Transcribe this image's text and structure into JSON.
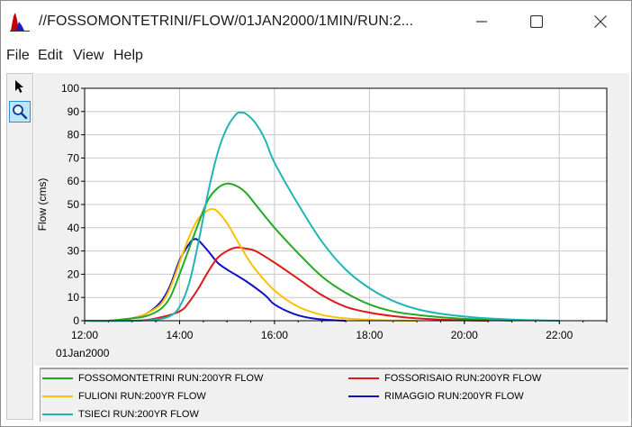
{
  "window": {
    "title": "//FOSSOMONTETRINI/FLOW/01JAN2000/1MIN/RUN:2...",
    "minimize_glyph": "—",
    "close_glyph": "✕"
  },
  "menu": {
    "items": [
      "File",
      "Edit",
      "View",
      "Help"
    ]
  },
  "toolbar": {
    "tools": [
      {
        "name": "pointer-tool",
        "icon": "arrow-pointer-icon",
        "active": false
      },
      {
        "name": "zoom-tool",
        "icon": "magnifier-icon",
        "active": true
      }
    ]
  },
  "chart_data": {
    "type": "line",
    "ylabel": "Flow (cms)",
    "xlabel": "",
    "ylim": [
      0,
      100
    ],
    "yticks": [
      0,
      10,
      20,
      30,
      40,
      50,
      60,
      70,
      80,
      90,
      100
    ],
    "xlim_hours": [
      12,
      23
    ],
    "xticks": [
      {
        "value": 12,
        "label": "12:00"
      },
      {
        "value": 14,
        "label": "14:00"
      },
      {
        "value": 16,
        "label": "16:00"
      },
      {
        "value": 18,
        "label": "18:00"
      },
      {
        "value": 20,
        "label": "20:00"
      },
      {
        "value": 22,
        "label": "22:00"
      }
    ],
    "date_label": "01Jan2000",
    "grid": true,
    "legend_position": "bottom",
    "series": [
      {
        "name": "FOSSOMONTETRINI RUN:200YR FLOW",
        "color": "#22aa22",
        "x": [
          12.0,
          12.5,
          13.0,
          13.3,
          13.6,
          13.8,
          14.0,
          14.2,
          14.4,
          14.6,
          14.8,
          15.0,
          15.2,
          15.4,
          15.6,
          16.0,
          16.5,
          17.0,
          17.5,
          18.0,
          18.5,
          19.0,
          19.5,
          20.0,
          20.5,
          21.0
        ],
        "y": [
          0,
          0,
          1,
          2,
          5,
          10,
          20,
          31,
          42,
          52,
          57,
          59,
          58,
          55,
          50,
          40,
          29,
          19,
          12,
          7,
          4,
          2.5,
          1.5,
          0.8,
          0.4,
          0
        ]
      },
      {
        "name": "FOSSORISAIO RUN:200YR FLOW",
        "color": "#e01818",
        "x": [
          12.0,
          13.0,
          13.5,
          14.0,
          14.2,
          14.4,
          14.6,
          14.8,
          15.0,
          15.2,
          15.4,
          15.6,
          16.0,
          16.5,
          17.0,
          17.5,
          18.0,
          18.5,
          19.0,
          19.5,
          20.0,
          20.5
        ],
        "y": [
          0,
          0,
          1,
          4,
          8,
          14,
          21,
          27,
          30,
          31.5,
          31,
          30,
          25,
          18,
          11,
          6,
          3.5,
          2,
          1,
          0.5,
          0.2,
          0
        ]
      },
      {
        "name": "FULIONI RUN:200YR FLOW",
        "color": "#ffc000",
        "x": [
          12.0,
          12.5,
          13.0,
          13.3,
          13.6,
          13.8,
          14.0,
          14.2,
          14.4,
          14.6,
          14.7,
          14.8,
          15.0,
          15.2,
          15.4,
          15.6,
          16.0,
          16.5,
          17.0,
          17.5,
          18.0,
          18.5,
          19.0
        ],
        "y": [
          0,
          0,
          1,
          3,
          7,
          14,
          25,
          36,
          44,
          47.5,
          48,
          47,
          42,
          35,
          28,
          22,
          13,
          6,
          2.5,
          1,
          0.4,
          0.1,
          0
        ]
      },
      {
        "name": "RIMAGGIO RUN:200YR FLOW",
        "color": "#1010c8",
        "x": [
          12.0,
          12.5,
          12.8,
          13.0,
          13.3,
          13.6,
          13.8,
          14.0,
          14.2,
          14.3,
          14.4,
          14.6,
          14.8,
          15.0,
          15.4,
          15.8,
          16.0,
          16.4,
          16.8,
          17.2,
          17.5
        ],
        "y": [
          0,
          0,
          0.5,
          1,
          3,
          8,
          15,
          26,
          33,
          35,
          34.5,
          30,
          25,
          22,
          17,
          11,
          7,
          3,
          1,
          0.3,
          0
        ]
      },
      {
        "name": "TSIECI RUN:200YR FLOW",
        "color": "#20b4b4",
        "x": [
          12.0,
          13.0,
          13.5,
          13.8,
          14.0,
          14.2,
          14.4,
          14.6,
          14.8,
          15.0,
          15.2,
          15.3,
          15.4,
          15.6,
          15.8,
          16.0,
          16.5,
          17.0,
          17.5,
          18.0,
          18.5,
          19.0,
          19.5,
          20.0,
          20.5,
          21.0,
          21.5,
          22.0
        ],
        "y": [
          0,
          0,
          0.5,
          2,
          6,
          16,
          34,
          55,
          72,
          83,
          89,
          89.5,
          89,
          85,
          78,
          68,
          50,
          34,
          22,
          14,
          8.5,
          5,
          3,
          1.8,
          1,
          0.5,
          0.2,
          0
        ]
      }
    ]
  }
}
